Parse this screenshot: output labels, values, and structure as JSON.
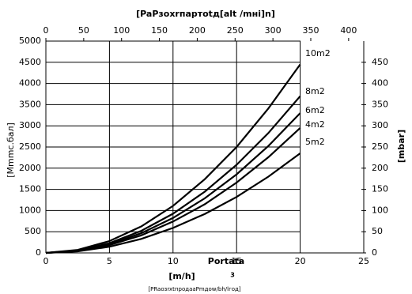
{
  "chart_data": {
    "type": "line",
    "title": "[PaPзохrпартоtд[alt /mнi]n]",
    "x_label": "Portata",
    "x_unit": "[m/h]",
    "x_unit_superscript": "3",
    "footer": "[PRaoзrxtпрoдaaPmдоw/bh/lгод]",
    "y_label": "[Mmmc.бал]",
    "y2_label": "[mbar]",
    "x": [
      0,
      2.5,
      5,
      7.5,
      10,
      12.5,
      15,
      17.5,
      20
    ],
    "xlim": [
      0,
      25
    ],
    "xticks": [
      0,
      5,
      10,
      15,
      20,
      25
    ],
    "ylim": [
      0,
      5000
    ],
    "yticks": [
      0,
      500,
      1000,
      1500,
      2000,
      2500,
      3000,
      3500,
      4000,
      4500,
      5000
    ],
    "y2lim": [
      0,
      500
    ],
    "y2ticks": [
      0,
      50,
      100,
      150,
      200,
      250,
      300,
      350,
      400,
      450
    ],
    "top_xlim": [
      0,
      420
    ],
    "top_xticks": [
      0,
      50,
      100,
      150,
      200,
      250,
      300,
      350,
      400
    ],
    "grid": true,
    "series": [
      {
        "name": "10m2",
        "color": "#000000",
        "values": [
          0,
          70,
          280,
          625,
          1110,
          1740,
          2500,
          3410,
          4450
        ]
      },
      {
        "name": "8m2",
        "color": "#000000",
        "values": [
          0,
          58,
          230,
          520,
          925,
          1445,
          2080,
          2830,
          3700
        ]
      },
      {
        "name": "6m2",
        "color": "#000000",
        "values": [
          0,
          52,
          205,
          465,
          825,
          1290,
          1855,
          2525,
          3300
        ]
      },
      {
        "name": "4m2",
        "color": "#000000",
        "values": [
          0,
          46,
          185,
          415,
          740,
          1150,
          1660,
          2260,
          2950
        ]
      },
      {
        "name": "5m2",
        "color": "#000000",
        "values": [
          0,
          37,
          145,
          330,
          590,
          920,
          1320,
          1800,
          2350
        ]
      }
    ]
  }
}
